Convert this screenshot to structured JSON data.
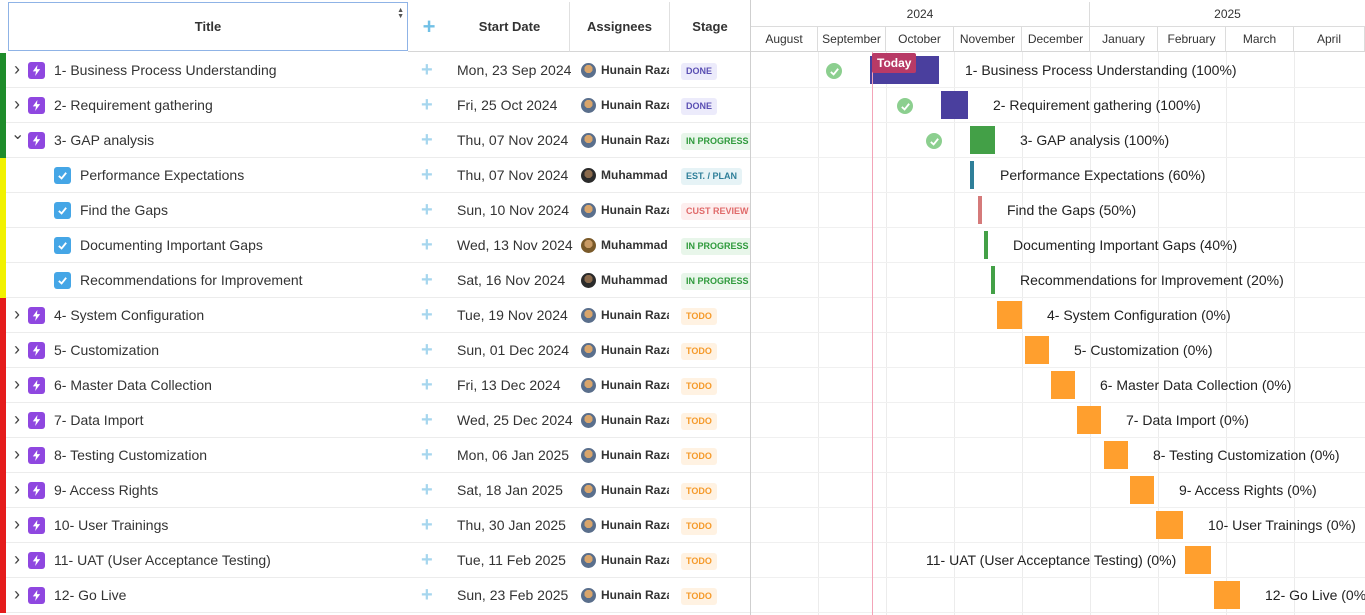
{
  "header": {
    "title": "Title",
    "start_date": "Start Date",
    "assignees": "Assignees",
    "stage": "Stage"
  },
  "timeline": {
    "years": [
      "2024",
      "2025"
    ],
    "months": [
      "August",
      "September",
      "October",
      "November",
      "December",
      "January",
      "February",
      "March",
      "April"
    ],
    "today_label": "Today"
  },
  "colors": {
    "done": "#4a3f9e",
    "complete_green": "#43a047",
    "progress_teal": "#2f7f99",
    "review_red": "#d57a7a",
    "todo_orange": "#ff9f2e",
    "status_green": "#1e8c2a",
    "status_yellow": "#f2f200",
    "status_red": "#e51c1c"
  },
  "rows": [
    {
      "type": "epic",
      "title": "1- Business Process Understanding",
      "date": "Mon, 23 Sep 2024",
      "assignee": "Hunain Raza",
      "avatar": "a1",
      "stage": "DONE",
      "stage_kind": "done",
      "status": "green",
      "expanded": false,
      "gantt_label": "1- Business Process Understanding (100%)",
      "progress": 100
    },
    {
      "type": "epic",
      "title": "2- Requirement gathering",
      "date": "Fri, 25 Oct 2024",
      "assignee": "Hunain Raza",
      "avatar": "a1",
      "stage": "DONE",
      "stage_kind": "done",
      "status": "green",
      "expanded": false,
      "gantt_label": "2- Requirement gathering (100%)",
      "progress": 100
    },
    {
      "type": "epic",
      "title": "3- GAP analysis",
      "date": "Thu, 07 Nov 2024",
      "assignee": "Hunain Raza",
      "avatar": "a1",
      "stage": "IN PROGRESS",
      "stage_kind": "progress",
      "status": "green",
      "expanded": true,
      "gantt_label": "3- GAP analysis (100%)",
      "progress": 100
    },
    {
      "type": "task",
      "title": "Performance Expectations",
      "date": "Thu, 07 Nov 2024",
      "assignee": "Muhammad Sh",
      "avatar": "a2",
      "stage": "EST. / PLAN",
      "stage_kind": "plan",
      "status": "yellow",
      "gantt_label": "Performance Expectations (60%)",
      "progress": 60
    },
    {
      "type": "task",
      "title": "Find the Gaps",
      "date": "Sun, 10 Nov 2024",
      "assignee": "Hunain Raza",
      "avatar": "a1",
      "stage": "CUST REVIEW",
      "stage_kind": "review",
      "status": "yellow",
      "gantt_label": "Find the Gaps (50%)",
      "progress": 50
    },
    {
      "type": "task",
      "title": "Documenting Important Gaps",
      "date": "Wed, 13 Nov 2024",
      "assignee": "Muhammad A",
      "avatar": "a3",
      "stage": "IN PROGRESS",
      "stage_kind": "progress",
      "status": "yellow",
      "gantt_label": "Documenting Important Gaps (40%)",
      "progress": 40
    },
    {
      "type": "task",
      "title": "Recommendations for Improvement",
      "date": "Sat, 16 Nov 2024",
      "assignee": "Muhammad Sh",
      "avatar": "a2",
      "stage": "IN PROGRESS",
      "stage_kind": "progress",
      "status": "yellow",
      "gantt_label": "Recommendations for Improvement (20%)",
      "progress": 20
    },
    {
      "type": "epic",
      "title": "4- System Configuration",
      "date": "Tue, 19 Nov 2024",
      "assignee": "Hunain Raza",
      "avatar": "a1",
      "stage": "TODO",
      "stage_kind": "todo",
      "status": "red",
      "expanded": false,
      "gantt_label": "4- System Configuration (0%)",
      "progress": 0
    },
    {
      "type": "epic",
      "title": "5- Customization",
      "date": "Sun, 01 Dec 2024",
      "assignee": "Hunain Raza",
      "avatar": "a1",
      "stage": "TODO",
      "stage_kind": "todo",
      "status": "red",
      "expanded": false,
      "gantt_label": "5- Customization (0%)",
      "progress": 0
    },
    {
      "type": "epic",
      "title": "6- Master Data Collection",
      "date": "Fri, 13 Dec 2024",
      "assignee": "Hunain Raza",
      "avatar": "a1",
      "stage": "TODO",
      "stage_kind": "todo",
      "status": "red",
      "expanded": false,
      "gantt_label": "6- Master Data Collection (0%)",
      "progress": 0
    },
    {
      "type": "epic",
      "title": "7- Data Import",
      "date": "Wed, 25 Dec 2024",
      "assignee": "Hunain Raza",
      "avatar": "a1",
      "stage": "TODO",
      "stage_kind": "todo",
      "status": "red",
      "expanded": false,
      "gantt_label": "7- Data Import (0%)",
      "progress": 0
    },
    {
      "type": "epic",
      "title": "8- Testing Customization",
      "date": "Mon, 06 Jan 2025",
      "assignee": "Hunain Raza",
      "avatar": "a1",
      "stage": "TODO",
      "stage_kind": "todo",
      "status": "red",
      "expanded": false,
      "gantt_label": "8- Testing Customization (0%)",
      "progress": 0
    },
    {
      "type": "epic",
      "title": "9- Access Rights",
      "date": "Sat, 18 Jan 2025",
      "assignee": "Hunain Raza",
      "avatar": "a1",
      "stage": "TODO",
      "stage_kind": "todo",
      "status": "red",
      "expanded": false,
      "gantt_label": "9- Access Rights (0%)",
      "progress": 0
    },
    {
      "type": "epic",
      "title": "10- User Trainings",
      "date": "Thu, 30 Jan 2025",
      "assignee": "Hunain Raza",
      "avatar": "a1",
      "stage": "TODO",
      "stage_kind": "todo",
      "status": "red",
      "expanded": false,
      "gantt_label": "10- User Trainings (0%)",
      "progress": 0
    },
    {
      "type": "epic",
      "title": "11- UAT (User Acceptance Testing)",
      "date": "Tue, 11 Feb 2025",
      "assignee": "Hunain Raza",
      "avatar": "a1",
      "stage": "TODO",
      "stage_kind": "todo",
      "status": "red",
      "expanded": false,
      "gantt_label": "11- UAT (User Acceptance Testing) (0%)",
      "progress": 0
    },
    {
      "type": "epic",
      "title": "12- Go Live",
      "date": "Sun, 23 Feb 2025",
      "assignee": "Hunain Raza",
      "avatar": "a1",
      "stage": "TODO",
      "stage_kind": "todo",
      "status": "red",
      "expanded": false,
      "gantt_label": "12- Go Live (0%)",
      "progress": 0
    }
  ]
}
